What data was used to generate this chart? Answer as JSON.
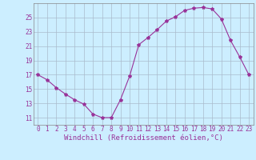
{
  "x": [
    0,
    1,
    2,
    3,
    4,
    5,
    6,
    7,
    8,
    9,
    10,
    11,
    12,
    13,
    14,
    15,
    16,
    17,
    18,
    19,
    20,
    21,
    22,
    23
  ],
  "y": [
    17.0,
    16.3,
    15.2,
    14.3,
    13.5,
    12.9,
    11.5,
    11.0,
    11.0,
    13.5,
    16.8,
    21.2,
    22.2,
    23.3,
    24.5,
    25.1,
    26.0,
    26.3,
    26.4,
    26.2,
    24.8,
    21.8,
    19.5,
    17.0
  ],
  "line_color": "#993399",
  "marker": "*",
  "marker_size": 3,
  "bg_color": "#cceeff",
  "grid_color": "#aabbcc",
  "axis_color": "#993399",
  "xlabel": "Windchill (Refroidissement éolien,°C)",
  "ylabel": "",
  "title": "",
  "xlim": [
    -0.5,
    23.5
  ],
  "ylim": [
    10.0,
    27.0
  ],
  "yticks": [
    11,
    13,
    15,
    17,
    19,
    21,
    23,
    25
  ],
  "xticks": [
    0,
    1,
    2,
    3,
    4,
    5,
    6,
    7,
    8,
    9,
    10,
    11,
    12,
    13,
    14,
    15,
    16,
    17,
    18,
    19,
    20,
    21,
    22,
    23
  ],
  "font_size": 5.5,
  "label_font_size": 6.5
}
